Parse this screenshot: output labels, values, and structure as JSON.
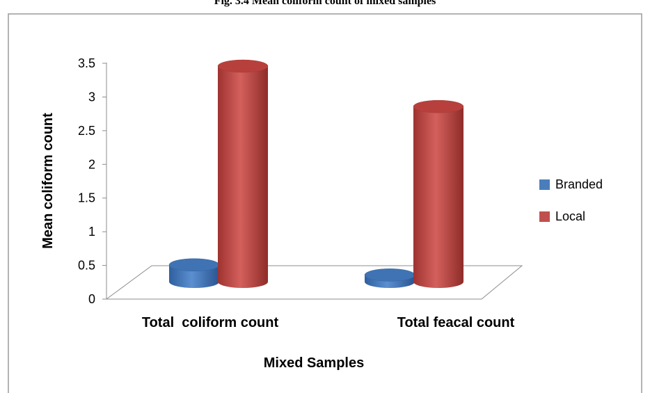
{
  "chart_data": {
    "type": "bar",
    "title": "Fig. 3.4 Mean coliform count of mixed samples",
    "categories": [
      "Total  coliform count",
      "Total feacal count"
    ],
    "series": [
      {
        "name": "Branded",
        "color": "#4a7ebb",
        "values": [
          0.25,
          0.1
        ]
      },
      {
        "name": "Local",
        "color": "#c0504d",
        "values": [
          3.2,
          2.6
        ]
      }
    ],
    "xlabel": "Mixed Samples",
    "ylabel": "Mean coliform count",
    "ylim": [
      0,
      3.5
    ],
    "yticks": [
      "0",
      "0.5",
      "1",
      "1.5",
      "2",
      "2.5",
      "3",
      "3.5"
    ],
    "grid": false,
    "legend_position": "right",
    "chart_style": "3d-cylinder"
  }
}
